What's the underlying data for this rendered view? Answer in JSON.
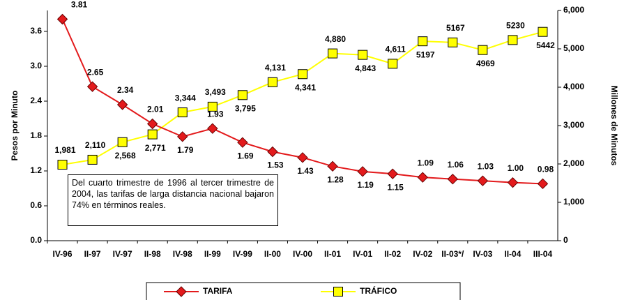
{
  "chart_data": {
    "type": "line",
    "categories": [
      "IV-96",
      "II-97",
      "IV-97",
      "II-98",
      "IV-98",
      "II-99",
      "IV-99",
      "II-00",
      "IV-00",
      "II-01",
      "IV-01",
      "II-02",
      "IV-02",
      "II-03*/",
      "IV-03",
      "II-04",
      "III-04"
    ],
    "ylabel": "Pesos por Minuto",
    "y2label": "Millones de Minutos",
    "ylim": [
      0,
      3.96
    ],
    "yticks": [
      {
        "value": 0,
        "label": "0.0"
      },
      0.6,
      1.2,
      1.8,
      2.4,
      {
        "value": 3,
        "label": "3.0"
      },
      3.6
    ],
    "y2lim": [
      0,
      6000
    ],
    "y2ticks": [
      0,
      {
        "value": 1000,
        "label": "1,000"
      },
      {
        "value": 2000,
        "label": "2,000"
      },
      {
        "value": 3000,
        "label": "3,000"
      },
      {
        "value": 4000,
        "label": "4,000"
      },
      {
        "value": 5000,
        "label": "5,000"
      },
      {
        "value": 6000,
        "label": "6,000"
      }
    ],
    "series": [
      {
        "name": "TARIFA",
        "color": "#e31a1c",
        "marker": "diamond",
        "values": [
          3.81,
          2.65,
          2.34,
          2.01,
          1.79,
          1.93,
          1.69,
          1.53,
          1.43,
          1.28,
          1.19,
          1.15,
          1.09,
          1.06,
          1.03,
          1.0,
          0.98
        ],
        "value_labels": [
          "3.81",
          "2.65",
          "2.34",
          "2.01",
          "1.79",
          "1.93",
          "1.69",
          "1.53",
          "1.43",
          "1.28",
          "1.19",
          "1.15",
          "1.09",
          "1.06",
          "1.03",
          "1.00",
          "0.98"
        ]
      },
      {
        "name": "TRÁFICO",
        "color": "#ffff00",
        "marker": "square",
        "axis": "y2",
        "values": [
          1981,
          2110,
          2568,
          2771,
          3344,
          3493,
          3795,
          4131,
          4341,
          4880,
          4843,
          4611,
          5197,
          5167,
          4969,
          5230,
          5442
        ],
        "value_labels": [
          "1,981",
          "2,110",
          "2,568",
          "2,771",
          "3,344",
          "3,493",
          "3,795",
          "4,131",
          "4,341",
          "4,880",
          "4,843",
          "4,611",
          "5197",
          "5167",
          "4969",
          "5230",
          "5442"
        ]
      }
    ],
    "annotation": "Del cuarto trimestre de 1996 al tercer trimestre de 2004, las tarifas de larga distancia nacional bajaron 74% en términos reales."
  }
}
